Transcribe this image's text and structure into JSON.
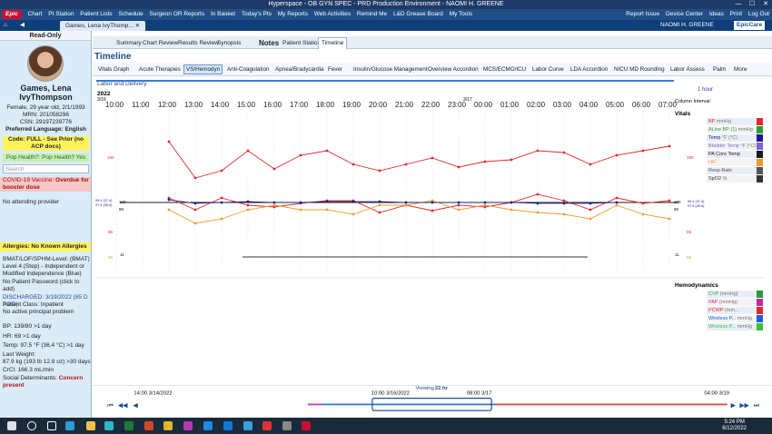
{
  "window": {
    "title": "Hyperspace - OB GYN SPEC - PRD Production Environment - NAOMI H. GREENE",
    "minimize": "—",
    "maximize": "☐",
    "close": "✕"
  },
  "toolbar": {
    "brand": "Epic",
    "items": [
      "Chart",
      "Pt Station",
      "Patient Lists",
      "Schedule",
      "Surgeon OR Reports",
      "In Basket",
      "Today's Pts",
      "My Reports",
      "Web Activities",
      "Remind Me",
      "L&D Grease Board",
      "My Tools"
    ],
    "right_items": [
      "Report Issue",
      "Device Center",
      "Ideas",
      "Print",
      "Log Out"
    ]
  },
  "tabbar": {
    "patient_tab": "Games, Lena IvyThomp...",
    "user": "NAOMI H. GREENE",
    "product": "EpicCare"
  },
  "patient": {
    "read_only": "Read-Only",
    "name_line1": "Games, Lena",
    "name_line2": "IvyThompson",
    "demographics": "Female, 29 year old, 2/1/1993",
    "mrn": "MRN: 201058296",
    "csn": "CSN: 29197239776",
    "language": "Preferred Language: English",
    "code_status": "Code: FULL - See Prior (no ACP docs)",
    "pop_health": "Pop Health?: Pop Health? Yes",
    "search_placeholder": "Search",
    "covid_label": "COVID-19 Vaccine:",
    "covid_value": "Overdue for booster dose",
    "provider": "No attending provider",
    "allergies": "Allergies: No Known Allergies",
    "mobility": "BMAT/LOF/SPHM-Level: (BMAT) Level 4 (Step) - Independent or Modified Independence (Blue)",
    "password": "No Patient Password (click to add)",
    "discharged": "DISCHARGED: 3/19/2022 (85 D AGO)",
    "patient_class": "Patient Class: Inpatient",
    "problem": "No active principal problem",
    "bp": "BP:  139/80 >1 day",
    "hr": "HR:  69 >1 day",
    "temp": "Temp:  97.5 °F (36.4 °C) >1 day",
    "last_weight_label": "Last Weight:",
    "last_weight": "87.9 kg (193 lb 12.8 oz) >30 days",
    "crcl": "CrCl: 166.3 mL/min",
    "social_label": "Social Determinants:",
    "social_value": "Concern present"
  },
  "subtabs": [
    "Summary",
    "Chart Review",
    "Results Review",
    "Synopsis",
    "Notes",
    "Patient Station",
    "Timeline"
  ],
  "timeline": {
    "title": "Timeline",
    "section": "Labor and Delivery",
    "items": [
      "Vitals Graph",
      "Acute Therapies",
      "VS/Hemodyn",
      "Anti-Coagulation",
      "Apnea/Bradycardia",
      "Fever",
      "Insulin/Glucose Management",
      "Overview Accordion",
      "MCS/ECMO/ICU",
      "Labor Curve",
      "LDA Accordion",
      "NICU MD Rounding",
      "Labor Assess",
      "Palm",
      "More"
    ],
    "year": "2022",
    "date_left": "3/16",
    "date_mid": "3/17",
    "column_interval_label": "Column Interval:",
    "column_interval_value": "1 hour",
    "times": [
      "10:00",
      "11:00",
      "12:00",
      "13:00",
      "14:00",
      "15:00",
      "16:00",
      "17:00",
      "18:00",
      "19:00",
      "20:00",
      "21:00",
      "22:00",
      "23:00",
      "00:00",
      "01:00",
      "02:00",
      "03:00",
      "04:00",
      "05:00",
      "06:00",
      "07:00"
    ],
    "vitals_title": "Vitals",
    "hemo_title": "Hemodynamics",
    "vitals_legend": [
      {
        "label": "BP",
        "unit": "mmHg",
        "color": "#e0282e"
      },
      {
        "label": "ALine BP (1)",
        "unit": "mmHg",
        "color": "#2c9b3a"
      },
      {
        "label": "Temp",
        "unit": "°F (°C)",
        "color": "#1a1a8c"
      },
      {
        "label": "Bladder Temp",
        "unit": "°F (°C)",
        "color": "#7a66d4"
      },
      {
        "label": "PA Core Temp",
        "unit": "",
        "color": "#1a1a1a"
      },
      {
        "label": "HR",
        "unit": "",
        "color": "#f29a2e"
      },
      {
        "label": "Resp Rate",
        "unit": "",
        "color": "#555555"
      },
      {
        "label": "SpO2",
        "unit": "%",
        "color": "#333333"
      }
    ],
    "hemo_legend": [
      {
        "label": "CVP",
        "unit": "(mmHg)",
        "color": "#2c9b3a"
      },
      {
        "label": "PAP",
        "unit": "(mmHg)",
        "color": "#c02ca0"
      },
      {
        "label": "PCWP",
        "unit": "(mm...",
        "color": "#e0282e"
      },
      {
        "label": "Wireless P...",
        "unit": "mmHg",
        "color": "#1c5fd8"
      },
      {
        "label": "Wireless P...",
        "unit": "mmHg",
        "color": "#3bbf3b"
      }
    ],
    "left_axis": {
      "top": "150",
      "upper": "99.4 (37.4)",
      "upper2": "97.9 (36.6)",
      "mid": "100",
      "mid2": "90",
      "low": "55",
      "bottom": "11",
      "bottom2": "93"
    },
    "right_axis": {
      "top": "150",
      "upper": "99.4 (37.4)",
      "upper2": "97.9 (36.6)",
      "mid": "100",
      "mid2": "90",
      "low": "55",
      "bottom": "11",
      "bottom2": "93"
    },
    "scrub_left": "14:00 3/14/2022",
    "scrub_viewing": "Viewing",
    "scrub_hours": "22 hr",
    "scrub_mid": "10:00 3/16/2022",
    "scrub_mid2": "08:00 3/17",
    "scrub_right": "04:00 3/19"
  },
  "chart_data": {
    "type": "line",
    "x": [
      "10:00",
      "11:00",
      "12:00",
      "13:00",
      "14:00",
      "15:00",
      "16:00",
      "17:00",
      "18:00",
      "19:00",
      "20:00",
      "21:00",
      "22:00",
      "23:00",
      "00:00",
      "01:00",
      "02:00",
      "03:00",
      "04:00",
      "05:00",
      "06:00",
      "07:00"
    ],
    "series": [
      {
        "name": "BP",
        "values": [
          null,
          null,
          150,
          110,
          118,
          140,
          120,
          135,
          140,
          125,
          118,
          125,
          132,
          122,
          128,
          130,
          140,
          138,
          125,
          135,
          140,
          145
        ]
      },
      {
        "name": "BP",
        "values": [
          null,
          null,
          88,
          75,
          88,
          80,
          78,
          82,
          85,
          85,
          72,
          80,
          74,
          80,
          78,
          83,
          92,
          85,
          75,
          88,
          82,
          85
        ]
      },
      {
        "name": "HR",
        "values": [
          null,
          null,
          95,
          80,
          85,
          95,
          100,
          95,
          95,
          90,
          100,
          100,
          105,
          95,
          100,
          95,
          92,
          90,
          85,
          100,
          90,
          85
        ]
      },
      {
        "name": "Temp",
        "values": [
          null,
          null,
          99.4,
          99.0,
          99.1,
          99.2,
          99.1,
          99.1,
          99.2,
          99.2,
          99.2,
          99.1,
          99.1,
          99.1,
          99.1,
          99.1,
          99.0,
          99.0,
          99.0,
          99.1,
          null,
          null
        ]
      }
    ]
  },
  "taskbar": {
    "time": "5:24 PM",
    "date": "6/12/2022"
  }
}
